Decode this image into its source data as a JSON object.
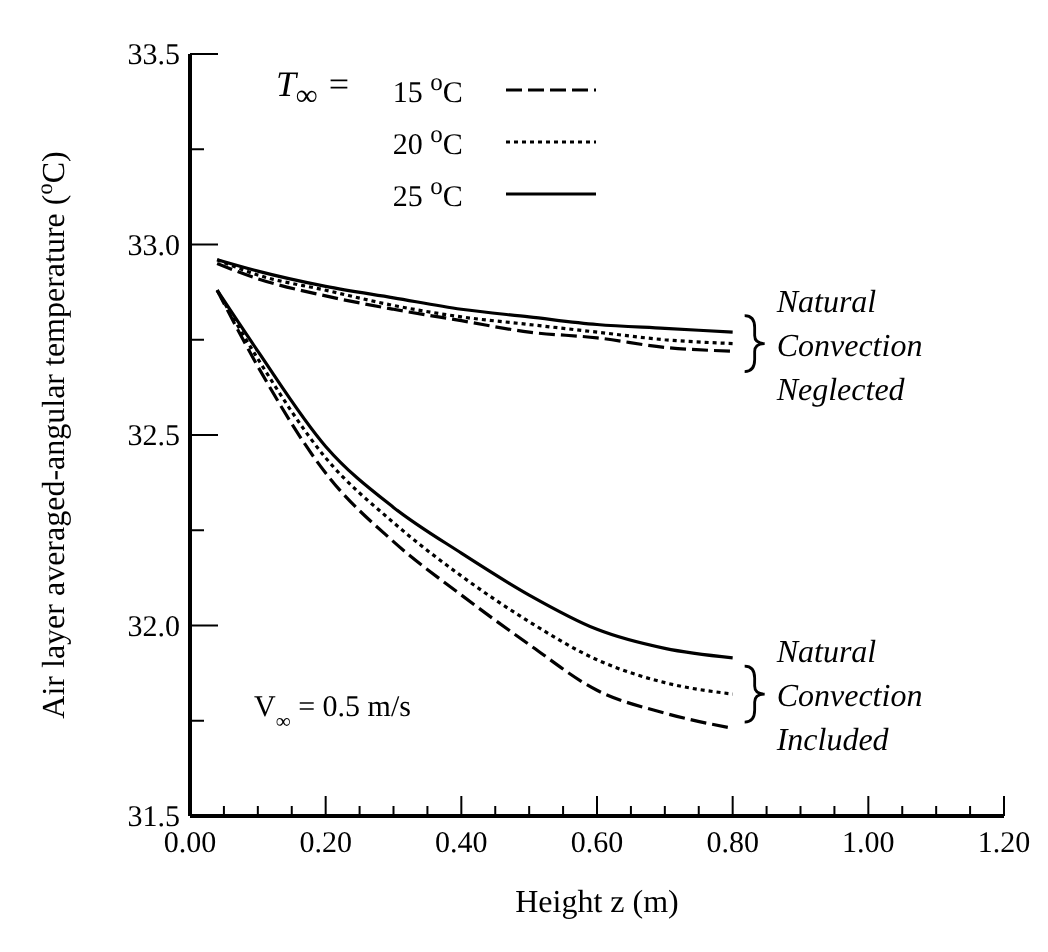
{
  "chart_data": {
    "type": "line",
    "xlabel": "Height z (m)",
    "ylabel": "Air layer averaged-angular temperature ($^{o}$C)",
    "legend_title": "T$_{∞}$ =",
    "legend": "top left",
    "marker": "none",
    "x": [
      0.04,
      0.1,
      0.2,
      0.3,
      0.4,
      0.5,
      0.6,
      0.7,
      0.8
    ],
    "series": [
      {
        "name": "15 $^{o}$C",
        "color": "#000000",
        "line_style": "dashed",
        "values": [
          32.95,
          32.91,
          32.865,
          32.83,
          32.8,
          32.77,
          32.755,
          32.73,
          32.72
        ]
      },
      {
        "name": "20 $^{o}$C",
        "color": "#000000",
        "line_style": "dotted",
        "values": [
          32.96,
          32.92,
          32.88,
          32.84,
          32.81,
          32.79,
          32.77,
          32.75,
          32.74
        ]
      },
      {
        "name": "25 $^{o}$C",
        "color": "#000000",
        "line_style": "solid",
        "values": [
          32.96,
          32.93,
          32.89,
          32.86,
          32.83,
          32.81,
          32.79,
          32.78,
          32.77
        ]
      },
      {
        "color": "#000000",
        "line_style": "dashed",
        "values": [
          32.88,
          32.68,
          32.4,
          32.22,
          32.08,
          31.95,
          31.83,
          31.77,
          31.73
        ]
      },
      {
        "color": "#000000",
        "line_style": "dotted",
        "values": [
          32.88,
          32.7,
          32.44,
          32.27,
          32.13,
          32.01,
          31.91,
          31.85,
          31.82
        ]
      },
      {
        "color": "#000000",
        "line_style": "solid",
        "values": [
          32.88,
          32.72,
          32.47,
          32.31,
          32.19,
          32.08,
          31.99,
          31.94,
          31.915
        ]
      }
    ],
    "xlim": [
      0,
      1.2
    ],
    "xticks": [
      {
        "value": 0,
        "label": "0.00"
      },
      {
        "value": 0.05,
        "label": null
      },
      {
        "value": 0.1,
        "label": null
      },
      {
        "value": 0.15,
        "label": null
      },
      {
        "value": 0.2,
        "label": "0.20"
      },
      {
        "value": 0.25,
        "label": null
      },
      {
        "value": 0.3,
        "label": null
      },
      {
        "value": 0.35,
        "label": null
      },
      {
        "value": 0.4,
        "label": "0.40"
      },
      {
        "value": 0.45,
        "label": null
      },
      {
        "value": 0.5,
        "label": null
      },
      {
        "value": 0.55,
        "label": null
      },
      {
        "value": 0.6,
        "label": "0.60"
      },
      {
        "value": 0.65,
        "label": null
      },
      {
        "value": 0.7,
        "label": null
      },
      {
        "value": 0.75,
        "label": null
      },
      {
        "value": 0.8,
        "label": "0.80"
      },
      {
        "value": 0.85,
        "label": null
      },
      {
        "value": 0.9,
        "label": null
      },
      {
        "value": 0.95,
        "label": null
      },
      {
        "value": 1,
        "label": "1.00"
      },
      {
        "value": 1.05,
        "label": null
      },
      {
        "value": 1.1,
        "label": null
      },
      {
        "value": 1.15,
        "label": null
      },
      {
        "value": 1.2,
        "label": "1.20"
      }
    ],
    "ylim": [
      31.5,
      33.5
    ],
    "yticks": [
      31.5,
      {
        "value": 31.75,
        "label": null
      },
      {
        "value": 32,
        "label": "32.0"
      },
      {
        "value": 32.25,
        "label": null
      },
      {
        "value": 32.5,
        "label": "32.5"
      },
      {
        "value": 32.75,
        "label": null
      },
      {
        "value": 33,
        "label": "33.0"
      },
      {
        "value": 33.25,
        "label": null
      },
      33.5
    ],
    "annotations": [
      {
        "text": "Natural Convection Neglected",
        "x": 0.8,
        "y": 32.74
      },
      {
        "text": "Natural Convection Included",
        "x": 0.8,
        "y": 31.82
      },
      "V$_{∞}$ = 0.5 m/s"
    ]
  }
}
